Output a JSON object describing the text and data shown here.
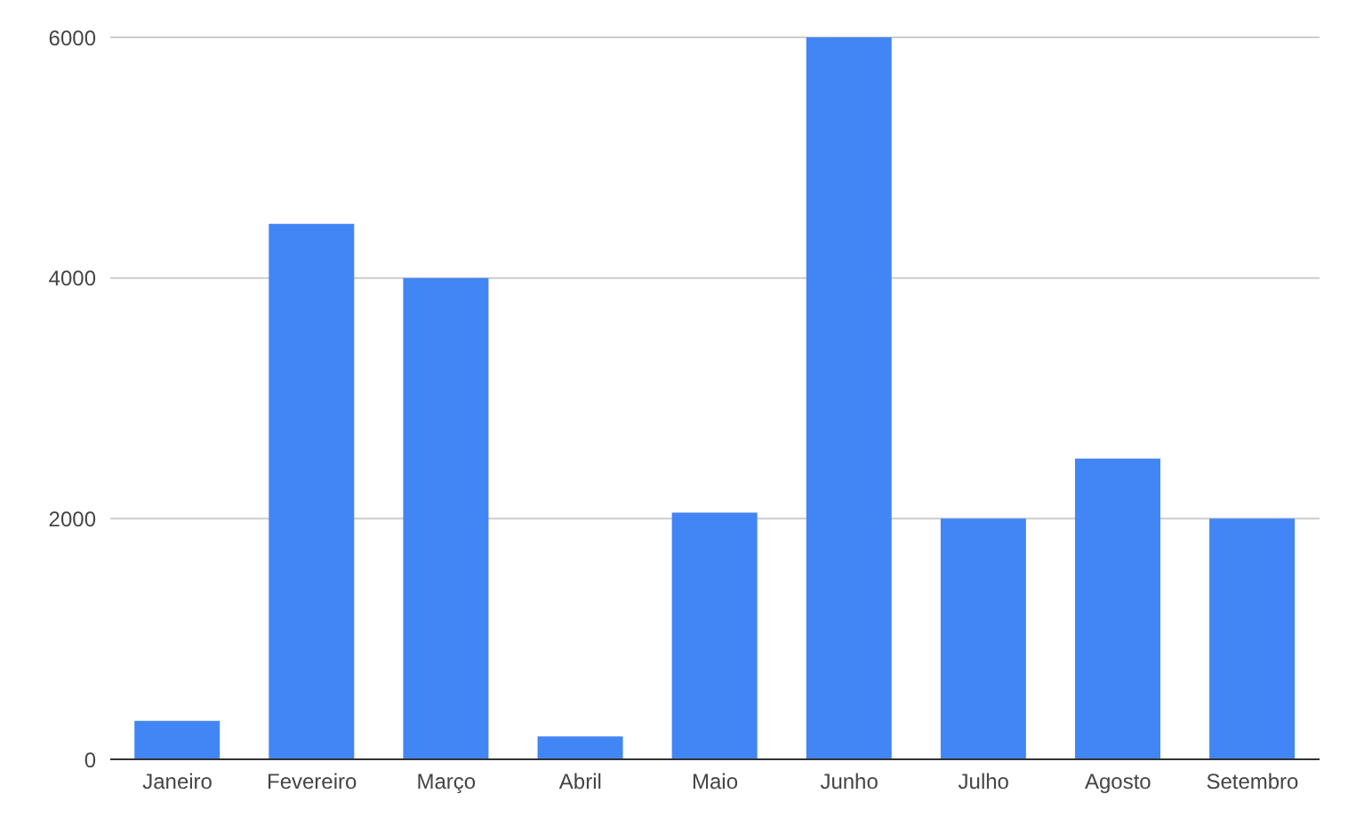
{
  "chart_data": {
    "type": "bar",
    "categories": [
      "Janeiro",
      "Fevereiro",
      "Março",
      "Abril",
      "Maio",
      "Junho",
      "Julho",
      "Agosto",
      "Setembro"
    ],
    "values": [
      320,
      4450,
      4000,
      190,
      2050,
      6000,
      2000,
      2500,
      2000
    ],
    "color": "#4285f4",
    "ylim": [
      0,
      6000
    ],
    "yticks": [
      0,
      2000,
      4000,
      6000
    ],
    "grid": "y"
  }
}
